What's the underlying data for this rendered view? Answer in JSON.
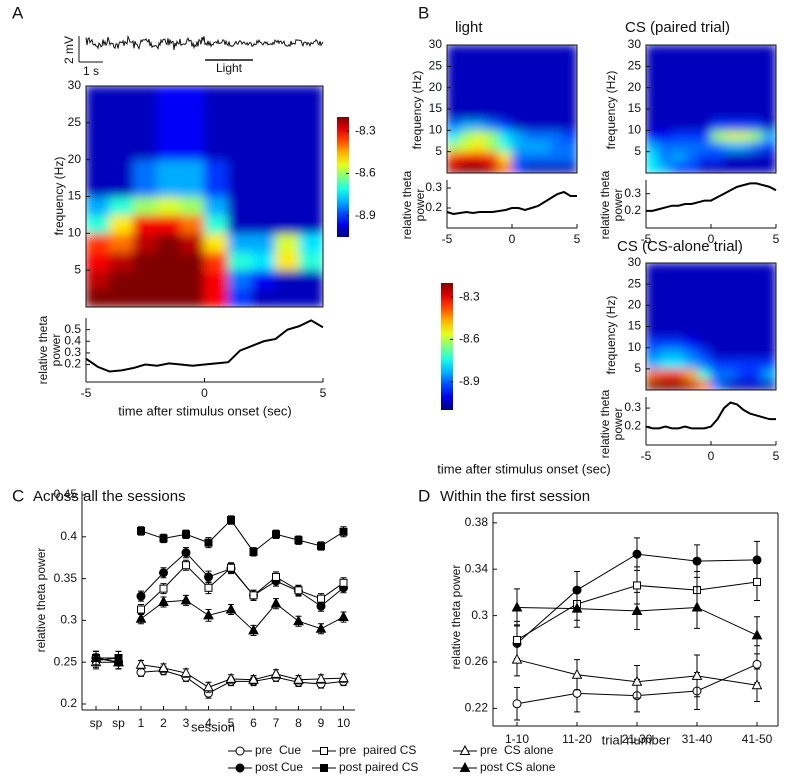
{
  "chart_data": [
    {
      "type": "heatmap",
      "panel_label": "A",
      "trace_labels": [
        "2 mV",
        "1 s",
        "Light"
      ],
      "ylabel": "frequency (Hz)",
      "x_edges": [
        -5,
        -4,
        -3,
        -2,
        -1,
        0,
        1,
        2,
        3,
        4,
        5
      ],
      "y_edges": [
        0,
        2.5,
        5,
        7.5,
        10,
        12.5,
        15,
        20,
        30
      ],
      "z": [
        [
          -8.2,
          -8.2,
          -8.2,
          -8.2,
          -8.2,
          -8.3,
          -8.9,
          -9.0,
          -9.0,
          -9.0
        ],
        [
          -8.25,
          -8.2,
          -8.2,
          -8.2,
          -8.2,
          -8.3,
          -8.85,
          -8.95,
          -9.0,
          -9.0
        ],
        [
          -8.3,
          -8.25,
          -8.2,
          -8.2,
          -8.2,
          -8.35,
          -8.7,
          -8.75,
          -8.5,
          -8.7
        ],
        [
          -8.35,
          -8.4,
          -8.25,
          -8.2,
          -8.25,
          -8.5,
          -8.8,
          -8.8,
          -8.55,
          -8.75
        ],
        [
          -8.7,
          -8.5,
          -8.3,
          -8.3,
          -8.4,
          -8.7,
          -9.0,
          -9.0,
          -9.0,
          -9.0
        ],
        [
          -8.8,
          -8.7,
          -8.6,
          -8.55,
          -8.6,
          -8.8,
          -9.0,
          -9.0,
          -9.0,
          -9.0
        ],
        [
          -9.0,
          -9.0,
          -8.85,
          -8.8,
          -8.8,
          -8.9,
          -9.0,
          -9.0,
          -9.0,
          -9.0
        ],
        [
          -9.0,
          -9.0,
          -9.0,
          -8.95,
          -8.95,
          -9.0,
          -9.0,
          -9.0,
          -9.0,
          -9.0
        ]
      ],
      "xlim": [
        -5,
        5
      ],
      "ylim": [
        0,
        30
      ],
      "yticks": [
        5,
        10,
        15,
        20,
        25,
        30
      ],
      "clim": [
        -9.05,
        -8.2
      ],
      "colormap": "jet"
    },
    {
      "type": "line",
      "ylabel": "relative theta power",
      "xlabel": "time after stimulus onset (sec)",
      "x": [
        -5,
        -4.5,
        -4,
        -3.5,
        -3,
        -2.5,
        -2,
        -1.5,
        -1,
        -0.5,
        0,
        0.5,
        1,
        1.5,
        2,
        2.5,
        3,
        3.5,
        4,
        4.5,
        5
      ],
      "values": [
        0.25,
        0.18,
        0.14,
        0.15,
        0.17,
        0.2,
        0.19,
        0.21,
        0.2,
        0.19,
        0.2,
        0.21,
        0.22,
        0.32,
        0.36,
        0.4,
        0.42,
        0.5,
        0.53,
        0.58,
        0.52
      ],
      "xlim": [
        -5,
        5
      ],
      "xticks": [
        -5,
        0,
        5
      ],
      "ylim": [
        0.05,
        0.6
      ],
      "yticks": [
        0.2,
        0.3,
        0.4,
        0.5
      ],
      "color": "#000000"
    },
    {
      "type": "heatmap",
      "panel_label": "B",
      "title": "light",
      "ylabel": "frequency (Hz)",
      "x_edges": [
        -5,
        -4,
        -3,
        -2,
        -1,
        0,
        1,
        2,
        3,
        4,
        5
      ],
      "y_edges": [
        0,
        2.5,
        5,
        7.5,
        10,
        12.5,
        15,
        20,
        30
      ],
      "z": [
        [
          -8.25,
          -8.2,
          -8.2,
          -8.25,
          -8.4,
          -8.9,
          -9.0,
          -9.0,
          -9.0,
          -9.0
        ],
        [
          -8.35,
          -8.3,
          -8.3,
          -8.35,
          -8.5,
          -8.85,
          -8.85,
          -8.85,
          -8.85,
          -8.85
        ],
        [
          -8.6,
          -8.55,
          -8.5,
          -8.6,
          -8.7,
          -8.8,
          -8.8,
          -8.8,
          -8.85,
          -8.85
        ],
        [
          -8.75,
          -8.6,
          -8.55,
          -8.6,
          -8.75,
          -8.8,
          -8.85,
          -8.85,
          -8.85,
          -8.9
        ],
        [
          -8.85,
          -8.8,
          -8.8,
          -8.85,
          -8.9,
          -9.0,
          -9.0,
          -9.0,
          -9.0,
          -9.0
        ],
        [
          -9.0,
          -9.0,
          -9.0,
          -9.0,
          -9.0,
          -9.0,
          -9.0,
          -9.0,
          -9.0,
          -9.0
        ],
        [
          -9.0,
          -9.0,
          -9.0,
          -9.0,
          -9.0,
          -9.0,
          -9.0,
          -9.0,
          -9.0,
          -9.0
        ],
        [
          -9.0,
          -9.0,
          -9.0,
          -9.0,
          -9.0,
          -9.0,
          -9.0,
          -9.0,
          -9.0,
          -9.0
        ]
      ],
      "xlim": [
        -5,
        5
      ],
      "ylim": [
        0,
        30
      ],
      "yticks": [
        5,
        10,
        15,
        20,
        25,
        30
      ],
      "clim": [
        -9.05,
        -8.2
      ],
      "colormap": "jet"
    },
    {
      "type": "line",
      "ylabel": "relative theta power",
      "x": [
        -5,
        -4.5,
        -4,
        -3.5,
        -3,
        -2.5,
        -2,
        -1.5,
        -1,
        -0.5,
        0,
        0.5,
        1,
        1.5,
        2,
        2.5,
        3,
        3.5,
        4,
        4.5,
        5
      ],
      "values": [
        0.18,
        0.17,
        0.175,
        0.18,
        0.175,
        0.18,
        0.18,
        0.18,
        0.185,
        0.19,
        0.2,
        0.2,
        0.19,
        0.2,
        0.21,
        0.23,
        0.25,
        0.27,
        0.28,
        0.26,
        0.26
      ],
      "xlim": [
        -5,
        5
      ],
      "xticks": [
        -5,
        0,
        5
      ],
      "ylim": [
        0.1,
        0.34
      ],
      "yticks": [
        0.2,
        0.3
      ],
      "color": "#000000"
    },
    {
      "type": "heatmap",
      "title": "CS (paired trial)",
      "ylabel": "frequency (Hz)",
      "x_edges": [
        -5,
        -4,
        -3,
        -2,
        -1,
        0,
        1,
        2,
        3,
        4,
        5
      ],
      "y_edges": [
        0,
        2.5,
        5,
        7.5,
        10,
        12.5,
        15,
        20,
        30
      ],
      "z": [
        [
          -8.75,
          -8.8,
          -8.9,
          -8.9,
          -9.0,
          -9.0,
          -9.0,
          -9.0,
          -9.0,
          -9.0
        ],
        [
          -8.75,
          -8.85,
          -8.8,
          -8.85,
          -8.9,
          -8.9,
          -9.0,
          -9.0,
          -9.0,
          -9.0
        ],
        [
          -8.8,
          -8.85,
          -8.85,
          -8.85,
          -8.85,
          -8.85,
          -8.8,
          -8.8,
          -8.85,
          -8.9
        ],
        [
          -8.95,
          -8.95,
          -8.9,
          -8.9,
          -8.9,
          -8.6,
          -8.55,
          -8.55,
          -8.6,
          -8.8
        ],
        [
          -9.0,
          -9.0,
          -9.0,
          -9.0,
          -9.0,
          -8.9,
          -8.9,
          -8.9,
          -8.9,
          -9.0
        ],
        [
          -9.0,
          -9.0,
          -9.0,
          -9.0,
          -9.0,
          -9.0,
          -9.0,
          -9.0,
          -9.0,
          -9.0
        ],
        [
          -9.0,
          -9.0,
          -9.0,
          -9.0,
          -9.0,
          -9.0,
          -9.0,
          -9.0,
          -9.0,
          -9.0
        ],
        [
          -9.0,
          -9.0,
          -9.0,
          -9.0,
          -9.0,
          -9.0,
          -9.0,
          -9.0,
          -9.0,
          -9.0
        ]
      ],
      "xlim": [
        -5,
        5
      ],
      "ylim": [
        0,
        30
      ],
      "yticks": [
        5,
        10,
        15,
        20,
        25,
        30
      ],
      "clim": [
        -9.05,
        -8.2
      ],
      "colormap": "jet"
    },
    {
      "type": "line",
      "ylabel": "relative theta power",
      "x": [
        -5,
        -4.5,
        -4,
        -3.5,
        -3,
        -2.5,
        -2,
        -1.5,
        -1,
        -0.5,
        0,
        0.5,
        1,
        1.5,
        2,
        2.5,
        3,
        3.5,
        4,
        4.5,
        5
      ],
      "values": [
        0.2,
        0.2,
        0.21,
        0.22,
        0.23,
        0.23,
        0.24,
        0.24,
        0.25,
        0.26,
        0.26,
        0.28,
        0.3,
        0.32,
        0.34,
        0.35,
        0.36,
        0.36,
        0.35,
        0.34,
        0.32
      ],
      "xlim": [
        -5,
        5
      ],
      "xticks": [
        -5,
        0,
        5
      ],
      "ylim": [
        0.1,
        0.38
      ],
      "yticks": [
        0.2,
        0.3
      ],
      "color": "#000000"
    },
    {
      "type": "heatmap",
      "title": "CS (CS-alone trial)",
      "ylabel": "frequency (Hz)",
      "x_edges": [
        -5,
        -4,
        -3,
        -2,
        -1,
        0,
        1,
        2,
        3,
        4,
        5
      ],
      "y_edges": [
        0,
        2.5,
        5,
        7.5,
        10,
        12.5,
        15,
        20,
        30
      ],
      "z": [
        [
          -8.2,
          -8.2,
          -8.2,
          -8.25,
          -8.4,
          -8.85,
          -9.0,
          -9.0,
          -9.0,
          -9.0
        ],
        [
          -8.4,
          -8.35,
          -8.35,
          -8.45,
          -8.7,
          -8.85,
          -8.85,
          -8.9,
          -8.9,
          -8.8
        ],
        [
          -8.8,
          -8.75,
          -8.75,
          -8.8,
          -8.85,
          -8.9,
          -8.9,
          -8.9,
          -8.9,
          -8.9
        ],
        [
          -8.85,
          -8.8,
          -8.8,
          -8.85,
          -8.9,
          -9.0,
          -9.0,
          -9.0,
          -9.0,
          -9.0
        ],
        [
          -8.9,
          -8.9,
          -8.9,
          -8.95,
          -9.0,
          -9.0,
          -9.0,
          -9.0,
          -9.0,
          -9.0
        ],
        [
          -9.0,
          -9.0,
          -9.0,
          -9.0,
          -9.0,
          -9.0,
          -9.0,
          -9.0,
          -9.0,
          -9.0
        ],
        [
          -9.0,
          -9.0,
          -9.0,
          -9.0,
          -9.0,
          -9.0,
          -9.0,
          -9.0,
          -9.0,
          -9.0
        ],
        [
          -9.0,
          -9.0,
          -9.0,
          -9.0,
          -9.0,
          -9.0,
          -9.0,
          -9.0,
          -9.0,
          -9.0
        ]
      ],
      "xlim": [
        -5,
        5
      ],
      "ylim": [
        0,
        30
      ],
      "yticks": [
        5,
        10,
        15,
        20,
        25,
        30
      ],
      "clim": [
        -9.05,
        -8.2
      ],
      "colormap": "jet"
    },
    {
      "type": "line",
      "ylabel": "relative theta power",
      "xlabel": "time after stimulus onset (sec)",
      "x": [
        -5,
        -4.5,
        -4,
        -3.5,
        -3,
        -2.5,
        -2,
        -1.5,
        -1,
        -0.5,
        0,
        0.5,
        1,
        1.5,
        2,
        2.5,
        3,
        3.5,
        4,
        4.5,
        5
      ],
      "values": [
        0.2,
        0.19,
        0.19,
        0.2,
        0.19,
        0.19,
        0.2,
        0.19,
        0.19,
        0.19,
        0.2,
        0.24,
        0.3,
        0.33,
        0.32,
        0.29,
        0.27,
        0.26,
        0.25,
        0.24,
        0.24
      ],
      "xlim": [
        -5,
        5
      ],
      "xticks": [
        -5,
        0,
        5
      ],
      "ylim": [
        0.1,
        0.36
      ],
      "yticks": [
        0.2,
        0.3
      ],
      "color": "#000000"
    },
    {
      "type": "colorbar",
      "clim": [
        -9.05,
        -8.2
      ],
      "cticks": [
        -8.3,
        -8.6,
        -8.9
      ],
      "colormap": "jet"
    },
    {
      "type": "colorbar",
      "clim": [
        -9.1,
        -8.2
      ],
      "cticks": [
        -8.3,
        -8.6,
        -8.9
      ],
      "colormap": "jet"
    },
    {
      "type": "errline",
      "panel_label": "C",
      "title": "Across all the sessions",
      "xlabel": "session",
      "ylabel": "relative theta power",
      "categories": [
        "sp",
        "sp",
        null,
        "1",
        "2",
        "3",
        "4",
        "5",
        "6",
        "7",
        "8",
        "9",
        "10"
      ],
      "ylim": [
        0.2,
        0.45
      ],
      "yticks": [
        0.2,
        0.25,
        0.3,
        0.35,
        0.4,
        0.45
      ],
      "legend": "bottom",
      "series": [
        {
          "name": "pre  Cue",
          "color": "#000000",
          "marker": "circle",
          "filled": false,
          "values": [
            0.255,
            0.25,
            null,
            0.238,
            0.24,
            0.232,
            0.213,
            0.227,
            0.227,
            0.232,
            0.226,
            0.224,
            0.227
          ],
          "errors": [
            0.008,
            0.008,
            null,
            0.005,
            0.005,
            0.005,
            0.006,
            0.005,
            0.005,
            0.005,
            0.005,
            0.005,
            0.005
          ]
        },
        {
          "name": "post Cue",
          "color": "#000000",
          "marker": "circle",
          "filled": true,
          "values": [
            0.255,
            0.25,
            null,
            0.329,
            0.357,
            0.381,
            0.352,
            0.362,
            0.33,
            0.347,
            0.335,
            0.317,
            0.339
          ],
          "errors": [
            0.008,
            0.008,
            null,
            0.006,
            0.006,
            0.006,
            0.007,
            0.006,
            0.006,
            0.006,
            0.006,
            0.006,
            0.006
          ]
        },
        {
          "name": "pre  paired CS",
          "color": "#000000",
          "marker": "square",
          "filled": false,
          "values": [
            0.255,
            0.255,
            null,
            0.313,
            0.338,
            0.366,
            0.339,
            0.363,
            0.33,
            0.352,
            0.336,
            0.326,
            0.345
          ],
          "errors": [
            0.008,
            0.008,
            null,
            0.006,
            0.006,
            0.006,
            0.007,
            0.006,
            0.006,
            0.006,
            0.006,
            0.006,
            0.006
          ]
        },
        {
          "name": "post paired CS",
          "color": "#000000",
          "marker": "square",
          "filled": true,
          "values": [
            0.252,
            0.255,
            null,
            0.407,
            0.398,
            0.403,
            0.393,
            0.42,
            0.382,
            0.403,
            0.396,
            0.389,
            0.406
          ],
          "errors": [
            0.008,
            0.008,
            null,
            0.005,
            0.005,
            0.005,
            0.006,
            0.005,
            0.005,
            0.005,
            0.005,
            0.005,
            0.006
          ]
        },
        {
          "name": "pre  CS alone",
          "color": "#000000",
          "marker": "triangle",
          "filled": false,
          "values": [
            0.25,
            0.25,
            null,
            0.247,
            0.243,
            0.237,
            0.22,
            0.23,
            0.229,
            0.236,
            0.229,
            0.23,
            0.231
          ],
          "errors": [
            0.008,
            0.008,
            null,
            0.005,
            0.005,
            0.005,
            0.006,
            0.005,
            0.005,
            0.005,
            0.005,
            0.005,
            0.005
          ]
        },
        {
          "name": "post CS alone",
          "color": "#000000",
          "marker": "triangle",
          "filled": true,
          "values": [
            0.255,
            0.25,
            null,
            0.302,
            0.322,
            0.324,
            0.306,
            0.313,
            0.288,
            0.32,
            0.299,
            0.29,
            0.304
          ],
          "errors": [
            0.008,
            0.008,
            null,
            0.006,
            0.006,
            0.006,
            0.007,
            0.006,
            0.006,
            0.006,
            0.006,
            0.006,
            0.006
          ]
        }
      ]
    },
    {
      "type": "errline",
      "panel_label": "D",
      "title": "Within the first session",
      "xlabel": "trial number",
      "ylabel": "relative theta power",
      "categories": [
        "1-10",
        "11-20",
        "21-30",
        "31-40",
        "41-50"
      ],
      "ylim": [
        0.21,
        0.385
      ],
      "yticks": [
        0.22,
        0.26,
        0.3,
        0.34,
        0.38
      ],
      "box": true,
      "series": [
        {
          "color": "#000000",
          "marker": "circle",
          "filled": false,
          "values": [
            0.224,
            0.233,
            0.231,
            0.235,
            0.258
          ],
          "errors": [
            0.014,
            0.016,
            0.014,
            0.016,
            0.016
          ]
        },
        {
          "color": "#000000",
          "marker": "circle",
          "filled": true,
          "values": [
            0.276,
            0.322,
            0.353,
            0.347,
            0.348
          ],
          "errors": [
            0.016,
            0.016,
            0.014,
            0.014,
            0.016
          ]
        },
        {
          "color": "#000000",
          "marker": "square",
          "filled": false,
          "values": [
            0.279,
            0.31,
            0.326,
            0.322,
            0.329
          ],
          "errors": [
            0.016,
            0.014,
            0.016,
            0.016,
            0.016
          ]
        },
        {
          "color": "#000000",
          "marker": "triangle",
          "filled": false,
          "values": [
            0.262,
            0.249,
            0.243,
            0.248,
            0.24
          ],
          "errors": [
            0.014,
            0.013,
            0.014,
            0.018,
            0.014
          ]
        },
        {
          "color": "#000000",
          "marker": "triangle",
          "filled": true,
          "values": [
            0.307,
            0.306,
            0.304,
            0.307,
            0.283
          ],
          "errors": [
            0.016,
            0.016,
            0.016,
            0.018,
            0.016
          ]
        }
      ]
    }
  ]
}
